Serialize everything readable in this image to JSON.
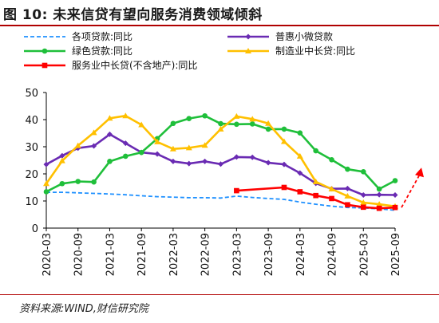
{
  "title": "图 10:  未来信贷有望向服务消费领域倾斜",
  "source": "资料来源:WIND,财信研究院",
  "colors": {
    "title_rule": "#b00000",
    "dashed_series": "#1e90ff",
    "purple_series": "#6a2bb3",
    "green_series": "#1fbf3a",
    "yellow_series": "#ffc000",
    "red_series": "#ff0000"
  },
  "chart_data": {
    "type": "line",
    "ylim": [
      0,
      50
    ],
    "yticks": [
      "0",
      "10",
      "20",
      "30",
      "40",
      "50"
    ],
    "x_tick_labels": [
      "2020-03",
      "2020-09",
      "2021-03",
      "2021-09",
      "2022-03",
      "2022-09",
      "2023-03",
      "2023-09",
      "2024-03",
      "2024-09",
      "2025-03",
      "2025-09"
    ],
    "x_start": "2020-03",
    "x_end": "2025-09",
    "legend_position": "top",
    "series": [
      {
        "name": "各项贷款:同比",
        "color": "#1e90ff",
        "style": "dashed",
        "marker": "none",
        "points": [
          [
            "2020-03",
            13.2
          ],
          [
            "2020-06",
            13.2
          ],
          [
            "2020-09",
            13.0
          ],
          [
            "2020-12",
            12.8
          ],
          [
            "2021-03",
            12.6
          ],
          [
            "2021-06",
            12.3
          ],
          [
            "2021-09",
            11.9
          ],
          [
            "2021-12",
            11.6
          ],
          [
            "2022-03",
            11.4
          ],
          [
            "2022-06",
            11.2
          ],
          [
            "2022-09",
            11.2
          ],
          [
            "2022-12",
            11.1
          ],
          [
            "2023-03",
            11.8
          ],
          [
            "2023-06",
            11.3
          ],
          [
            "2023-09",
            10.9
          ],
          [
            "2023-12",
            10.6
          ],
          [
            "2024-03",
            9.6
          ],
          [
            "2024-06",
            8.8
          ],
          [
            "2024-09",
            8.1
          ],
          [
            "2024-12",
            7.6
          ],
          [
            "2025-03",
            7.4
          ],
          [
            "2025-06",
            7.1
          ],
          [
            "2025-09",
            6.6
          ]
        ]
      },
      {
        "name": "普惠小微贷款",
        "color": "#6a2bb3",
        "style": "solid",
        "marker": "diamond",
        "points": [
          [
            "2020-03",
            23.5
          ],
          [
            "2020-06",
            26.7
          ],
          [
            "2020-09",
            29.5
          ],
          [
            "2020-12",
            30.3
          ],
          [
            "2021-03",
            34.6
          ],
          [
            "2021-06",
            31.3
          ],
          [
            "2021-09",
            27.9
          ],
          [
            "2021-12",
            27.3
          ],
          [
            "2022-03",
            24.6
          ],
          [
            "2022-06",
            23.8
          ],
          [
            "2022-09",
            24.6
          ],
          [
            "2022-12",
            23.6
          ],
          [
            "2023-03",
            26.2
          ],
          [
            "2023-06",
            26.1
          ],
          [
            "2023-09",
            24.1
          ],
          [
            "2023-12",
            23.5
          ],
          [
            "2024-03",
            20.3
          ],
          [
            "2024-06",
            16.5
          ],
          [
            "2024-09",
            14.5
          ],
          [
            "2024-12",
            14.6
          ],
          [
            "2025-03",
            12.2
          ],
          [
            "2025-06",
            12.3
          ],
          [
            "2025-09",
            12.2
          ]
        ]
      },
      {
        "name": "绿色贷款:同比",
        "color": "#1fbf3a",
        "style": "solid",
        "marker": "circle",
        "points": [
          [
            "2020-03",
            13.4
          ],
          [
            "2020-06",
            16.4
          ],
          [
            "2020-09",
            17.2
          ],
          [
            "2020-12",
            17.0
          ],
          [
            "2021-03",
            24.6
          ],
          [
            "2021-06",
            26.5
          ],
          [
            "2021-09",
            27.9
          ],
          [
            "2021-12",
            33.0
          ],
          [
            "2022-03",
            38.6
          ],
          [
            "2022-06",
            40.4
          ],
          [
            "2022-09",
            41.4
          ],
          [
            "2022-12",
            38.5
          ],
          [
            "2023-03",
            38.3
          ],
          [
            "2023-06",
            38.4
          ],
          [
            "2023-09",
            36.5
          ],
          [
            "2023-12",
            36.5
          ],
          [
            "2024-03",
            35.1
          ],
          [
            "2024-06",
            28.5
          ],
          [
            "2024-09",
            25.2
          ],
          [
            "2024-12",
            21.7
          ],
          [
            "2025-03",
            20.8
          ],
          [
            "2025-06",
            14.4
          ],
          [
            "2025-09",
            17.5
          ]
        ]
      },
      {
        "name": "制造业中长贷:同比",
        "color": "#ffc000",
        "style": "solid",
        "marker": "triangle",
        "points": [
          [
            "2020-03",
            16.4
          ],
          [
            "2020-06",
            24.8
          ],
          [
            "2020-09",
            30.4
          ],
          [
            "2020-12",
            35.2
          ],
          [
            "2021-03",
            40.5
          ],
          [
            "2021-06",
            41.4
          ],
          [
            "2021-09",
            38.1
          ],
          [
            "2021-12",
            31.8
          ],
          [
            "2022-03",
            29.2
          ],
          [
            "2022-06",
            29.6
          ],
          [
            "2022-09",
            30.5
          ],
          [
            "2022-12",
            36.5
          ],
          [
            "2023-03",
            41.2
          ],
          [
            "2023-06",
            40.2
          ],
          [
            "2023-09",
            38.6
          ],
          [
            "2023-12",
            31.9
          ],
          [
            "2024-03",
            26.5
          ],
          [
            "2024-06",
            17.1
          ],
          [
            "2024-09",
            14.4
          ],
          [
            "2024-12",
            11.8
          ],
          [
            "2025-03",
            9.4
          ],
          [
            "2025-06",
            8.8
          ],
          [
            "2025-09",
            8.0
          ]
        ]
      },
      {
        "name": "服务业中长贷(不含地产):同比",
        "color": "#ff0000",
        "style": "solid",
        "marker": "square",
        "points": [
          [
            "2023-03",
            13.8
          ],
          [
            "2023-12",
            15.0
          ],
          [
            "2024-03",
            13.4
          ],
          [
            "2024-06",
            12.0
          ],
          [
            "2024-09",
            10.9
          ],
          [
            "2024-12",
            8.6
          ],
          [
            "2025-03",
            7.7
          ],
          [
            "2025-06",
            7.3
          ],
          [
            "2025-09",
            7.6
          ]
        ]
      }
    ],
    "forecast_arrow": {
      "color": "#ff0000",
      "style": "dashed"
    }
  }
}
